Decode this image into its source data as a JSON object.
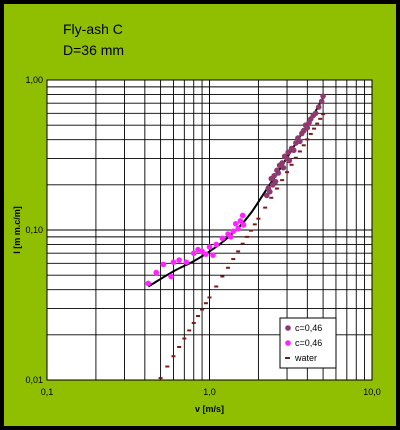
{
  "colors": {
    "frame": "#000000",
    "panel": "#8fbf00",
    "plot_bg": "#ffffff",
    "grid": "#000000",
    "series_dark": "#8e3a6e",
    "series_pink": "#ff24ff",
    "series_water": "#7a1a1a",
    "fit_line": "#000000"
  },
  "chart_data": {
    "type": "scatter",
    "title": [
      "Fly-ash C",
      "D=36 mm"
    ],
    "xlabel": "v [m/s]",
    "ylabel": "I [m m.c/m]",
    "xscale": "log",
    "yscale": "log",
    "xlim": [
      0.1,
      10
    ],
    "ylim": [
      0.01,
      1
    ],
    "xticks": [
      "0,1",
      "1,0",
      "10,0"
    ],
    "yticks": [
      "0,01",
      "0,10",
      "1,00"
    ],
    "grid": true,
    "legend_position": "bottom-right",
    "series": [
      {
        "name": "c=0,46",
        "marker": "dot",
        "color_key": "series_dark",
        "x": [
          2.25,
          2.3,
          2.35,
          2.4,
          2.45,
          2.5,
          2.55,
          2.6,
          2.65,
          2.7,
          2.8,
          2.85,
          2.9,
          3.0,
          3.05,
          3.1,
          3.2,
          3.3,
          3.4,
          3.5,
          3.6,
          3.7,
          3.8,
          3.9,
          4.0,
          4.1,
          4.2,
          4.35,
          4.5,
          4.7,
          4.9,
          5.0
        ],
        "y": [
          0.17,
          0.19,
          0.18,
          0.22,
          0.2,
          0.23,
          0.21,
          0.25,
          0.24,
          0.27,
          0.28,
          0.26,
          0.31,
          0.3,
          0.33,
          0.29,
          0.35,
          0.34,
          0.38,
          0.41,
          0.39,
          0.44,
          0.46,
          0.5,
          0.48,
          0.52,
          0.55,
          0.58,
          0.6,
          0.66,
          0.72,
          0.78
        ]
      },
      {
        "name": "c=0,46",
        "marker": "dot",
        "color_key": "series_pink",
        "x": [
          0.42,
          0.47,
          0.52,
          0.58,
          0.6,
          0.65,
          0.72,
          0.8,
          0.85,
          0.9,
          0.95,
          1.0,
          1.05,
          1.1,
          1.2,
          1.3,
          1.35,
          1.4,
          1.45,
          1.5,
          1.55,
          1.6,
          1.62
        ],
        "y": [
          0.044,
          0.052,
          0.059,
          0.049,
          0.061,
          0.063,
          0.061,
          0.07,
          0.074,
          0.072,
          0.069,
          0.077,
          0.068,
          0.08,
          0.088,
          0.094,
          0.09,
          0.098,
          0.11,
          0.102,
          0.115,
          0.125,
          0.108
        ]
      },
      {
        "name": "water",
        "marker": "dash",
        "color_key": "series_water",
        "x": [
          0.5,
          0.55,
          0.6,
          0.65,
          0.7,
          0.75,
          0.8,
          0.85,
          0.9,
          0.95,
          1.0,
          1.1,
          1.2,
          1.3,
          1.4,
          1.5,
          1.6,
          1.7,
          1.8,
          1.9,
          2.0,
          2.2,
          2.4,
          2.6,
          2.8,
          3.0,
          3.2,
          3.4,
          3.6,
          3.8,
          4.0,
          4.2,
          4.4,
          4.6,
          4.8,
          5.0
        ],
        "y": [
          0.0103,
          0.0123,
          0.0144,
          0.0166,
          0.0189,
          0.0214,
          0.024,
          0.0267,
          0.0295,
          0.0325,
          0.0355,
          0.042,
          0.049,
          0.056,
          0.064,
          0.072,
          0.081,
          0.09,
          0.099,
          0.109,
          0.119,
          0.141,
          0.164,
          0.189,
          0.215,
          0.243,
          0.272,
          0.303,
          0.334,
          0.367,
          0.402,
          0.437,
          0.474,
          0.512,
          0.551,
          0.592
        ]
      }
    ],
    "fit_line": {
      "x": [
        0.42,
        0.6,
        0.8,
        1.0,
        1.2,
        1.5,
        1.8,
        2.1,
        2.4,
        2.8,
        3.2,
        3.6,
        4.0,
        4.5,
        5.0
      ],
      "y": [
        0.042,
        0.053,
        0.062,
        0.072,
        0.083,
        0.103,
        0.13,
        0.167,
        0.208,
        0.27,
        0.34,
        0.42,
        0.5,
        0.62,
        0.76
      ]
    }
  }
}
